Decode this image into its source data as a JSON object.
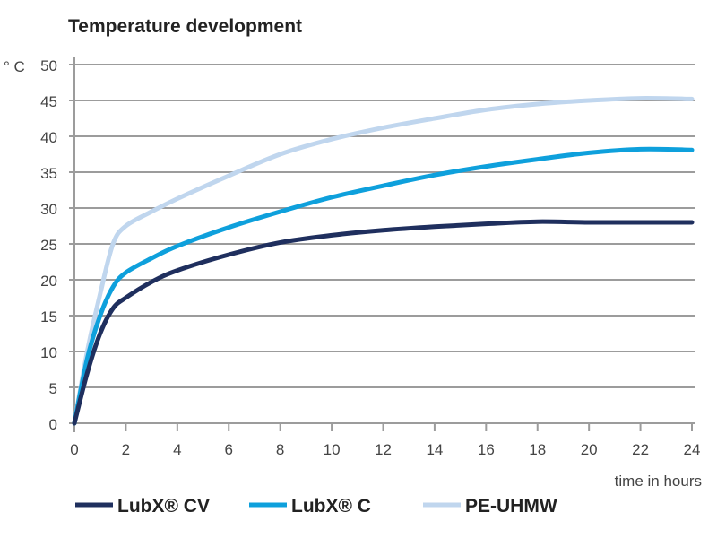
{
  "chart_data": {
    "type": "line",
    "title": "Temperature development",
    "xlabel": "time in hours",
    "ylabel": "° C",
    "xlim": [
      0,
      24
    ],
    "ylim": [
      0,
      50
    ],
    "xticks": [
      0,
      2,
      4,
      6,
      8,
      10,
      12,
      14,
      16,
      18,
      20,
      22,
      24
    ],
    "yticks": [
      0,
      5,
      10,
      15,
      20,
      25,
      30,
      35,
      40,
      45,
      50
    ],
    "grid": true,
    "legend_position": "bottom",
    "x": [
      0,
      0.5,
      1,
      1.5,
      2,
      3,
      4,
      6,
      8,
      10,
      12,
      14,
      16,
      18,
      20,
      22,
      24
    ],
    "series": [
      {
        "name": "LubX® CV",
        "color": "#1f2f5e",
        "values": [
          0,
          7,
          12.5,
          16,
          17.5,
          19.7,
          21.3,
          23.5,
          25.2,
          26.2,
          26.9,
          27.4,
          27.8,
          28.1,
          28,
          28,
          28
        ]
      },
      {
        "name": "LubX® C",
        "color": "#0ea0dc",
        "values": [
          0,
          9,
          15,
          19,
          21,
          23,
          24.7,
          27.3,
          29.5,
          31.5,
          33.1,
          34.6,
          35.8,
          36.8,
          37.7,
          38.2,
          38.1
        ]
      },
      {
        "name": "PE-UHMW",
        "color": "#c0d6ee",
        "values": [
          0,
          10,
          18,
          25,
          27.5,
          29.5,
          31.3,
          34.5,
          37.5,
          39.6,
          41.2,
          42.5,
          43.7,
          44.5,
          45,
          45.3,
          45.2
        ]
      }
    ]
  }
}
